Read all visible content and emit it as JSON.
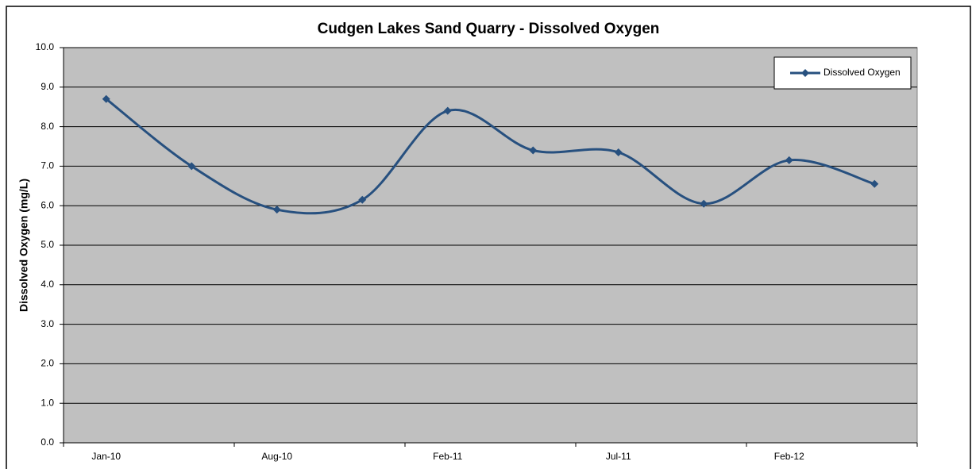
{
  "chart_data": {
    "type": "line",
    "title": "Cudgen Lakes Sand Quarry - Dissolved Oxygen",
    "y_label": "Dissolved Oxygen (mg/L)",
    "categories": [
      "Jan-10",
      null,
      "Aug-10",
      null,
      "Feb-11",
      null,
      "Jul-11",
      null,
      "Feb-12",
      null
    ],
    "series": [
      {
        "name": "Dissolved Oxygen",
        "color": "#27507f",
        "values": [
          8.7,
          7.0,
          5.9,
          6.15,
          8.4,
          7.4,
          7.35,
          6.05,
          7.15,
          6.55
        ]
      }
    ],
    "ylim": [
      0,
      10
    ],
    "yticks": [
      {
        "value": 0,
        "label": "0.0"
      },
      {
        "value": 1,
        "label": "1.0"
      },
      {
        "value": 2,
        "label": "2.0"
      },
      {
        "value": 3,
        "label": "3.0"
      },
      {
        "value": 4,
        "label": "4.0"
      },
      {
        "value": 5,
        "label": "5.0"
      },
      {
        "value": 6,
        "label": "6.0"
      },
      {
        "value": 7,
        "label": "7.0"
      },
      {
        "value": 8,
        "label": "8.0"
      },
      {
        "value": 9,
        "label": "9.0"
      },
      {
        "value": 10,
        "label": "10.0"
      }
    ],
    "grid": true,
    "smooth": true,
    "legend": "top-right",
    "plot_background": "#c0c0c0"
  }
}
